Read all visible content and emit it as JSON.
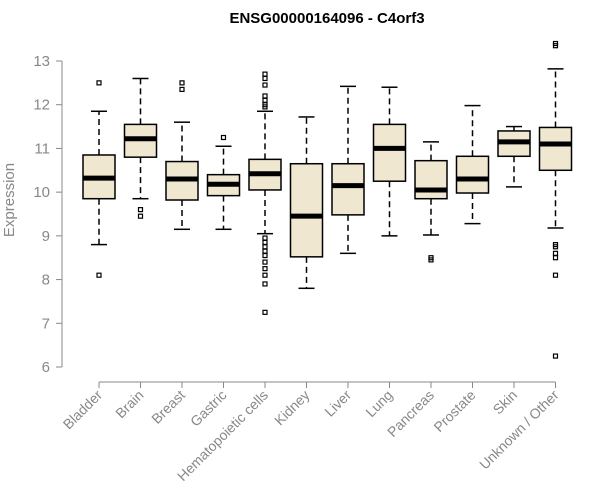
{
  "chart_data": {
    "type": "boxplot",
    "title": "ENSG00000164096 - C4orf3",
    "ylabel": "Expression",
    "xlabel": "",
    "ylim": [
      6,
      13
    ],
    "yticks": [
      6,
      7,
      8,
      9,
      10,
      11,
      12,
      13
    ],
    "grid": false,
    "categories": [
      "Bladder",
      "Brain",
      "Breast",
      "Gastric",
      "Hematopoietic cells",
      "Kidney",
      "Liver",
      "Lung",
      "Pancreas",
      "Prostate",
      "Skin",
      "Unknown / Other"
    ],
    "box_color": "#efe7cf",
    "boxes": [
      {
        "category": "Bladder",
        "whisker_low": 8.8,
        "q1": 9.85,
        "median": 10.32,
        "q3": 10.85,
        "whisker_high": 11.85,
        "outliers": [
          12.5,
          8.1
        ]
      },
      {
        "category": "Brain",
        "whisker_low": 9.85,
        "q1": 10.8,
        "median": 11.22,
        "q3": 11.55,
        "whisker_high": 12.6,
        "outliers": [
          9.6,
          9.45
        ]
      },
      {
        "category": "Breast",
        "whisker_low": 9.15,
        "q1": 9.82,
        "median": 10.3,
        "q3": 10.7,
        "whisker_high": 11.6,
        "outliers": [
          12.5,
          12.35
        ]
      },
      {
        "category": "Gastric",
        "whisker_low": 9.15,
        "q1": 9.92,
        "median": 10.18,
        "q3": 10.4,
        "whisker_high": 11.05,
        "outliers": [
          11.25
        ]
      },
      {
        "category": "Hematopoietic cells",
        "whisker_low": 9.05,
        "q1": 10.05,
        "median": 10.42,
        "q3": 10.75,
        "whisker_high": 11.85,
        "outliers": [
          12.7,
          12.6,
          12.45,
          12.2,
          12.1,
          12.0,
          11.95,
          8.95,
          8.85,
          8.75,
          8.65,
          8.55,
          8.4,
          8.25,
          8.1,
          7.9,
          7.25
        ]
      },
      {
        "category": "Kidney",
        "whisker_low": 7.8,
        "q1": 8.52,
        "median": 9.45,
        "q3": 10.65,
        "whisker_high": 11.72,
        "outliers": []
      },
      {
        "category": "Liver",
        "whisker_low": 8.6,
        "q1": 9.48,
        "median": 10.15,
        "q3": 10.65,
        "whisker_high": 12.42,
        "outliers": []
      },
      {
        "category": "Lung",
        "whisker_low": 9.0,
        "q1": 10.25,
        "median": 11.0,
        "q3": 11.55,
        "whisker_high": 12.4,
        "outliers": []
      },
      {
        "category": "Pancreas",
        "whisker_low": 9.02,
        "q1": 9.85,
        "median": 10.05,
        "q3": 10.72,
        "whisker_high": 11.15,
        "outliers": [
          8.5,
          8.45
        ]
      },
      {
        "category": "Prostate",
        "whisker_low": 9.28,
        "q1": 9.98,
        "median": 10.3,
        "q3": 10.82,
        "whisker_high": 11.98,
        "outliers": []
      },
      {
        "category": "Skin",
        "whisker_low": 10.12,
        "q1": 10.82,
        "median": 11.15,
        "q3": 11.4,
        "whisker_high": 11.5,
        "outliers": []
      },
      {
        "category": "Unknown / Other",
        "whisker_low": 9.18,
        "q1": 10.5,
        "median": 11.1,
        "q3": 11.48,
        "whisker_high": 12.82,
        "outliers": [
          13.4,
          13.35,
          8.8,
          8.75,
          8.6,
          8.5,
          8.1,
          6.25
        ]
      }
    ]
  }
}
